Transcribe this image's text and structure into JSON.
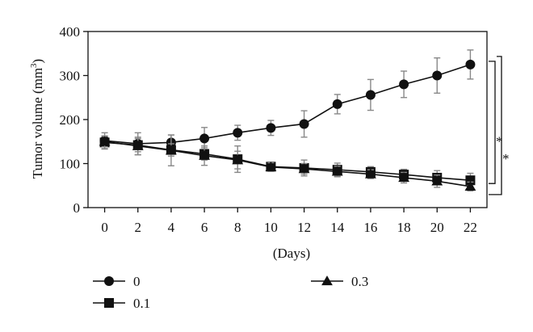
{
  "chart_data": {
    "type": "line",
    "xlabel": "(Days)",
    "ylabel": "Tumor volume (mm",
    "ylabel_sup": "3",
    "ylabel_close": ")",
    "x": [
      0,
      2,
      4,
      6,
      8,
      10,
      12,
      14,
      16,
      18,
      20,
      22
    ],
    "x_ticks": [
      "0",
      "2",
      "4",
      "6",
      "8",
      "10",
      "12",
      "14",
      "16",
      "18",
      "20",
      "22"
    ],
    "y_ticks": [
      "0",
      "100",
      "200",
      "300",
      "400"
    ],
    "xlim": [
      -1,
      23
    ],
    "ylim": [
      0,
      400
    ],
    "grid": false,
    "legend_position": "bottom",
    "series": [
      {
        "name": "0",
        "marker": "circle",
        "values": [
          152,
          145,
          148,
          157,
          170,
          181,
          190,
          235,
          256,
          280,
          300,
          325
        ],
        "err": [
          18,
          25,
          17,
          25,
          17,
          17,
          30,
          22,
          35,
          30,
          40,
          33
        ]
      },
      {
        "name": "0.1",
        "marker": "square",
        "values": [
          148,
          142,
          131,
          122,
          110,
          93,
          90,
          86,
          81,
          75,
          68,
          62
        ],
        "err": [
          15,
          15,
          14,
          14,
          30,
          10,
          18,
          15,
          12,
          12,
          16,
          16
        ]
      },
      {
        "name": "0.3",
        "marker": "triangle",
        "values": [
          150,
          140,
          130,
          118,
          108,
          92,
          88,
          82,
          76,
          68,
          60,
          48
        ],
        "err": [
          12,
          20,
          35,
          22,
          20,
          10,
          12,
          12,
          10,
          12,
          14,
          10
        ]
      }
    ],
    "annotations": [
      "*",
      "*"
    ]
  }
}
